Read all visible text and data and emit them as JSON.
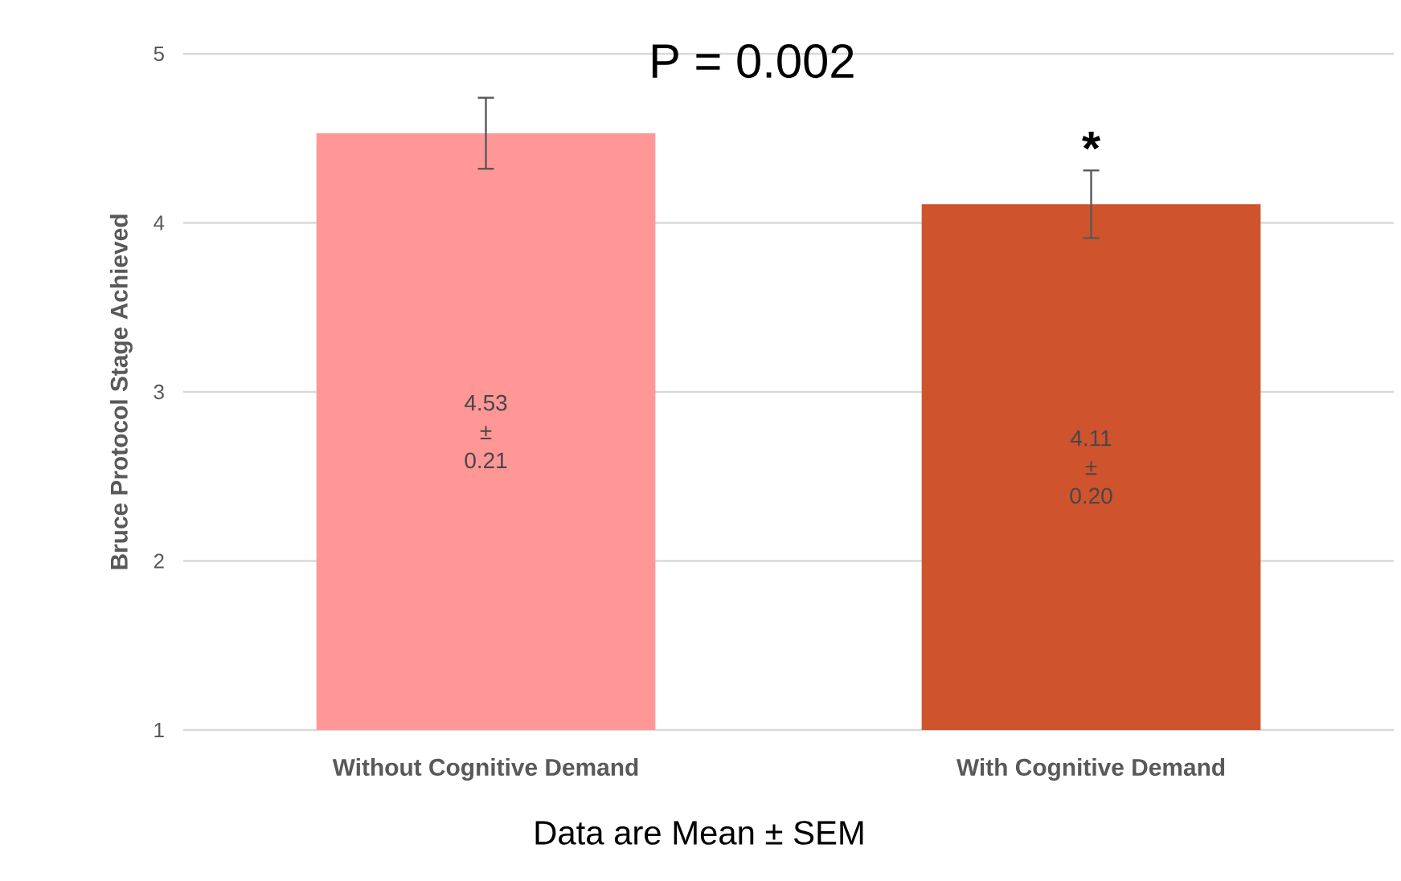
{
  "chart_data": {
    "type": "bar",
    "title": "P = 0.002",
    "ylabel": "Bruce Protocol Stage Achieved",
    "categories": [
      "Without Cognitive Demand",
      "With Cognitive Demand"
    ],
    "values": [
      4.53,
      4.11
    ],
    "errors": [
      0.21,
      0.2
    ],
    "colors": [
      "#ff9797",
      "#cf542d"
    ],
    "value_labels": [
      "4.53 ± 0.21",
      "4.11 ± 0.20"
    ],
    "annotations": [
      "*",
      "Data are Mean ± SEM"
    ],
    "ylim": [
      1,
      5
    ],
    "yticks": [
      1,
      2,
      3,
      4,
      5
    ],
    "grid": "y"
  }
}
